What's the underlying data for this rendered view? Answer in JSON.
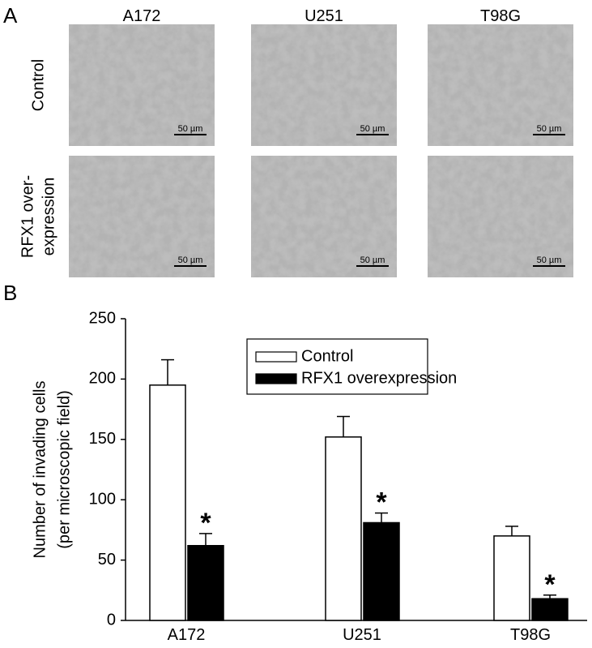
{
  "panel_a": {
    "label": "A",
    "columns": [
      "A172",
      "U251",
      "T98G"
    ],
    "rows": [
      [
        "Control"
      ],
      [
        "RFX1 over-",
        "expression"
      ]
    ],
    "scale_bar": "50 µm"
  },
  "panel_b_label": "B",
  "chart_data": {
    "type": "bar",
    "categories": [
      "A172",
      "U251",
      "T98G"
    ],
    "ylabel": [
      "Number of invading cells",
      "(per microscopic field)"
    ],
    "series": [
      {
        "name": "Control",
        "color": "#ffffff",
        "values": [
          195,
          152,
          70
        ],
        "errors": [
          21,
          17,
          8
        ]
      },
      {
        "name": "RFX1 overexpression",
        "color": "#000000",
        "values": [
          62,
          81,
          18
        ],
        "errors": [
          10,
          8,
          3
        ]
      }
    ],
    "annotations": [
      "*",
      "*",
      "*"
    ],
    "ylim": [
      0,
      250
    ],
    "yticks": [
      0,
      50,
      100,
      150,
      200,
      250
    ],
    "legend": "top-center"
  }
}
